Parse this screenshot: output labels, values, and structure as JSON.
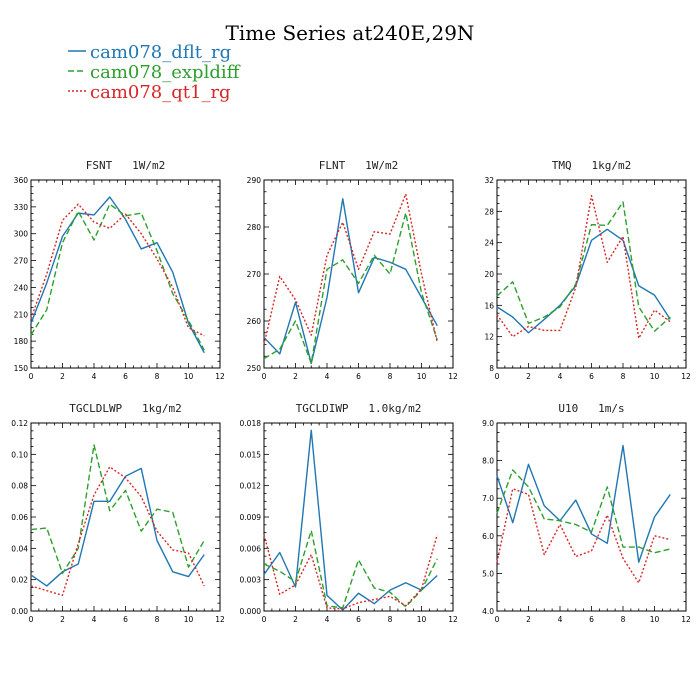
{
  "figure": {
    "title": "Time Series at240E,29N",
    "colors": {
      "axis": "#000000",
      "text": "#000000"
    }
  },
  "legend": [
    {
      "label": "cam078_dflt_rg",
      "color": "#1f77b4",
      "dash": "solid"
    },
    {
      "label": "cam078_expldiff",
      "color": "#2ca02c",
      "dash": "dashed"
    },
    {
      "label": "cam078_qt1_rg",
      "color": "#d62728",
      "dash": "dotted"
    }
  ],
  "chart_data": [
    {
      "type": "line",
      "title": "FSNT   1W/m2",
      "x": [
        0,
        1,
        2,
        3,
        4,
        5,
        6,
        7,
        8,
        9,
        10,
        11
      ],
      "xlim": [
        0,
        12
      ],
      "xticks": [
        "0",
        "2",
        "4",
        "6",
        "8",
        "10",
        "12"
      ],
      "ylim": [
        150,
        360
      ],
      "yticks": [
        "150",
        "180",
        "210",
        "240",
        "270",
        "300",
        "330",
        "360"
      ],
      "series": [
        {
          "name": "cam078_dflt_rg",
          "values": [
            200,
            245,
            297,
            323,
            321,
            341,
            316,
            283,
            290,
            257,
            200,
            167
          ]
        },
        {
          "name": "cam078_expldiff",
          "values": [
            187,
            215,
            290,
            325,
            293,
            333,
            320,
            323,
            281,
            233,
            203,
            170
          ]
        },
        {
          "name": "cam078_qt1_rg",
          "values": [
            205,
            255,
            315,
            333,
            313,
            306,
            322,
            300,
            272,
            240,
            195,
            186
          ]
        }
      ]
    },
    {
      "type": "line",
      "title": "FLNT   1W/m2",
      "x": [
        0,
        1,
        2,
        3,
        4,
        5,
        6,
        7,
        8,
        9,
        10,
        11
      ],
      "xlim": [
        0,
        12
      ],
      "xticks": [
        "0",
        "2",
        "4",
        "6",
        "8",
        "10",
        "12"
      ],
      "ylim": [
        250,
        290
      ],
      "yticks": [
        "250",
        "260",
        "270",
        "280",
        "290"
      ],
      "series": [
        {
          "name": "cam078_dflt_rg",
          "values": [
            256.5,
            253,
            264,
            251,
            265,
            286,
            266,
            273.5,
            272.5,
            271,
            265,
            259
          ]
        },
        {
          "name": "cam078_expldiff",
          "values": [
            252,
            254,
            260,
            251,
            271,
            273,
            268,
            274,
            270,
            283,
            266,
            256
          ]
        },
        {
          "name": "cam078_qt1_rg",
          "values": [
            255,
            269.5,
            264.5,
            257,
            274,
            281,
            271,
            279,
            278.5,
            287,
            270,
            255.5
          ]
        }
      ]
    },
    {
      "type": "line",
      "title": "TMQ   1kg/m2",
      "x": [
        0,
        1,
        2,
        3,
        4,
        5,
        6,
        7,
        8,
        9,
        10,
        11
      ],
      "xlim": [
        0,
        12
      ],
      "xticks": [
        "0",
        "2",
        "4",
        "6",
        "8",
        "10",
        "12"
      ],
      "ylim": [
        8,
        32
      ],
      "yticks": [
        "8",
        "12",
        "16",
        "20",
        "24",
        "28",
        "32"
      ],
      "series": [
        {
          "name": "cam078_dflt_rg",
          "values": [
            15.8,
            14.5,
            12.5,
            14.2,
            16,
            18.5,
            24.3,
            25.7,
            24.3,
            18.5,
            17.3,
            14.2
          ]
        },
        {
          "name": "cam078_expldiff",
          "values": [
            17.2,
            19,
            13.7,
            14.5,
            15.8,
            18.7,
            26.3,
            26.2,
            29.2,
            15.8,
            12.7,
            14.5
          ]
        },
        {
          "name": "cam078_qt1_rg",
          "values": [
            14.8,
            12,
            13.3,
            12.8,
            12.8,
            18.3,
            30,
            21.5,
            24.8,
            11.8,
            15.4,
            13.9
          ]
        }
      ]
    },
    {
      "type": "line",
      "title": "TGCLDLWP   1kg/m2",
      "x": [
        0,
        1,
        2,
        3,
        4,
        5,
        6,
        7,
        8,
        9,
        10,
        11
      ],
      "xlim": [
        0,
        12
      ],
      "xticks": [
        "0",
        "2",
        "4",
        "6",
        "8",
        "10",
        "12"
      ],
      "ylim": [
        0,
        0.12
      ],
      "yticks": [
        "0.00",
        "0.02",
        "0.04",
        "0.06",
        "0.08",
        "0.10",
        "0.12"
      ],
      "series": [
        {
          "name": "cam078_dflt_rg",
          "values": [
            0.023,
            0.016,
            0.025,
            0.03,
            0.07,
            0.07,
            0.086,
            0.091,
            0.045,
            0.025,
            0.022,
            0.036
          ]
        },
        {
          "name": "cam078_expldiff",
          "values": [
            0.052,
            0.053,
            0.024,
            0.04,
            0.106,
            0.064,
            0.077,
            0.051,
            0.065,
            0.063,
            0.028,
            0.045
          ]
        },
        {
          "name": "cam078_qt1_rg",
          "values": [
            0.016,
            0.013,
            0.01,
            0.043,
            0.074,
            0.092,
            0.085,
            0.073,
            0.051,
            0.039,
            0.037,
            0.016
          ]
        }
      ]
    },
    {
      "type": "line",
      "title": "TGCLDIWP   1.0kg/m2",
      "x": [
        0,
        1,
        2,
        3,
        4,
        5,
        6,
        7,
        8,
        9,
        10,
        11
      ],
      "xlim": [
        0,
        12
      ],
      "xticks": [
        "0",
        "2",
        "4",
        "6",
        "8",
        "10",
        "12"
      ],
      "ylim": [
        0,
        0.018
      ],
      "yticks": [
        "0.000",
        "0.003",
        "0.006",
        "0.009",
        "0.012",
        "0.015",
        "0.018"
      ],
      "series": [
        {
          "name": "cam078_dflt_rg",
          "values": [
            0.0035,
            0.0056,
            0.0023,
            0.0173,
            0.0015,
            0.0001,
            0.0017,
            0.0007,
            0.002,
            0.0027,
            0.002,
            0.0034
          ]
        },
        {
          "name": "cam078_expldiff",
          "values": [
            0.0045,
            0.0038,
            0.0028,
            0.0077,
            0.0005,
            0.0003,
            0.0049,
            0.0022,
            0.0018,
            0.0004,
            0.002,
            0.005
          ]
        },
        {
          "name": "cam078_qt1_rg",
          "values": [
            0.0073,
            0.0016,
            0.0025,
            0.0054,
            0.0003,
            0.0002,
            0.0008,
            0.0011,
            0.0014,
            0.0005,
            0.0021,
            0.0073
          ]
        }
      ]
    },
    {
      "type": "line",
      "title": "U10   1m/s",
      "x": [
        0,
        1,
        2,
        3,
        4,
        5,
        6,
        7,
        8,
        9,
        10,
        11
      ],
      "xlim": [
        0,
        12
      ],
      "xticks": [
        "0",
        "2",
        "4",
        "6",
        "8",
        "10",
        "12"
      ],
      "ylim": [
        4,
        9
      ],
      "yticks": [
        "4.0",
        "5.0",
        "6.0",
        "7.0",
        "8.0",
        "9.0"
      ],
      "series": [
        {
          "name": "cam078_dflt_rg",
          "values": [
            7.6,
            6.35,
            7.9,
            6.8,
            6.4,
            6.95,
            6.05,
            5.8,
            8.4,
            5.3,
            6.5,
            7.1
          ]
        },
        {
          "name": "cam078_expldiff",
          "values": [
            6.6,
            7.75,
            7.3,
            6.45,
            6.4,
            6.3,
            6.1,
            7.3,
            5.7,
            5.7,
            5.55,
            5.65
          ]
        },
        {
          "name": "cam078_qt1_rg",
          "values": [
            5.3,
            7.25,
            7.1,
            5.5,
            6.3,
            5.45,
            5.6,
            6.55,
            5.4,
            4.75,
            6.0,
            5.9
          ]
        }
      ]
    }
  ]
}
